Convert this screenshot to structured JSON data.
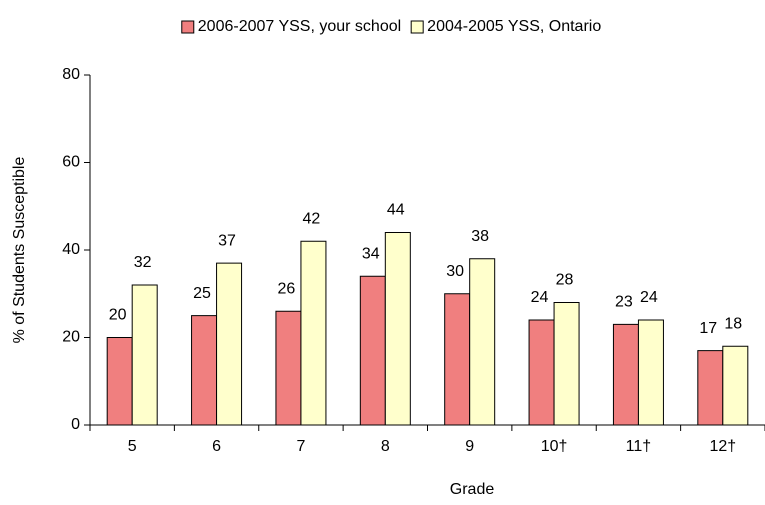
{
  "chart_data": {
    "type": "bar",
    "xlabel": "Grade",
    "ylabel": "% of Students Susceptible",
    "categories": [
      "5",
      "6",
      "7",
      "8",
      "9",
      "10†",
      "11†",
      "12†"
    ],
    "series": [
      {
        "name": "2006-2007 YSS, your school",
        "color": "#f07f7f",
        "values": [
          20,
          25,
          26,
          34,
          30,
          24,
          23,
          17
        ]
      },
      {
        "name": "2004-2005 YSS, Ontario",
        "color": "#ffffcc",
        "values": [
          32,
          37,
          42,
          44,
          38,
          28,
          24,
          18
        ]
      }
    ],
    "ylim": [
      0,
      80
    ],
    "yticks": [
      0,
      20,
      40,
      60,
      80
    ],
    "legend": "top"
  }
}
